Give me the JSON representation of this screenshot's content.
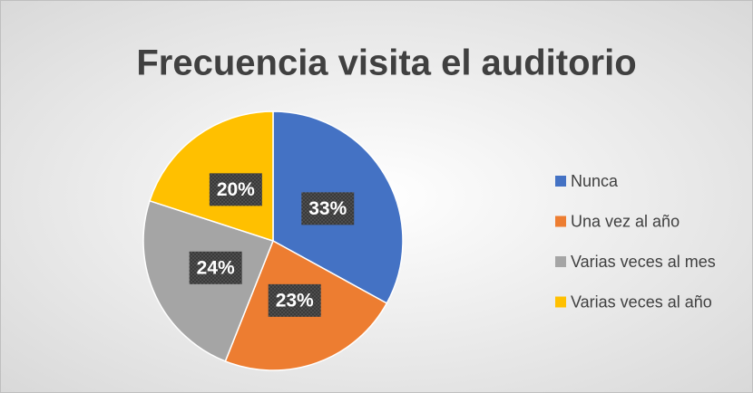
{
  "chart_data": {
    "type": "pie",
    "title": "Frecuencia visita el auditorio",
    "categories": [
      "Nunca",
      "Una vez al año",
      "Varias veces al mes",
      "Varias veces al año"
    ],
    "values": [
      33,
      23,
      24,
      20
    ],
    "value_labels": [
      "33%",
      "23%",
      "24%",
      "20%"
    ],
    "colors": [
      "#4472c4",
      "#ed7d31",
      "#a5a5a5",
      "#ffc000"
    ],
    "legend": "right"
  }
}
